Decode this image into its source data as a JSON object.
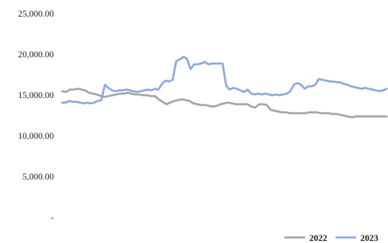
{
  "chart_data": {
    "type": "line",
    "title": "",
    "xlabel": "",
    "ylabel": "",
    "ylim": [
      0,
      25000
    ],
    "y_ticks": [
      0,
      5000,
      10000,
      15000,
      20000,
      25000
    ],
    "y_tick_labels": [
      "-",
      "5,000.00",
      "10,000.00",
      "15,000.00",
      "20,000.00",
      "25,000.00"
    ],
    "grid": false,
    "legend_position": "bottom-right",
    "series": [
      {
        "name": "2022",
        "color": "#a6a6a6",
        "values": [
          15500,
          15400,
          15700,
          15700,
          15800,
          15700,
          15600,
          15300,
          15200,
          15100,
          14900,
          14800,
          14900,
          15000,
          15100,
          15200,
          15200,
          15300,
          15200,
          15100,
          15100,
          15000,
          15000,
          14900,
          14900,
          14500,
          14200,
          13900,
          14100,
          14300,
          14400,
          14500,
          14400,
          14300,
          14000,
          13900,
          13800,
          13800,
          13700,
          13600,
          13700,
          13900,
          14000,
          14100,
          14000,
          13900,
          13900,
          13900,
          13900,
          13600,
          13500,
          13900,
          13900,
          13800,
          13200,
          13100,
          13000,
          12900,
          12900,
          12800,
          12800,
          12800,
          12800,
          12800,
          12900,
          12900,
          12900,
          12800,
          12800,
          12800,
          12700,
          12700,
          12600,
          12500,
          12400,
          12300,
          12400,
          12400,
          12400,
          12400,
          12400,
          12400,
          12400,
          12400,
          12400
        ]
      },
      {
        "name": "2023",
        "color": "#8eaadb",
        "values": [
          14100,
          14100,
          14300,
          14200,
          14200,
          14100,
          14000,
          14100,
          14000,
          14100,
          14300,
          14400,
          16300,
          15900,
          15600,
          15500,
          15600,
          15600,
          15700,
          15600,
          15500,
          15400,
          15500,
          15600,
          15700,
          15600,
          15800,
          15700,
          16400,
          16800,
          16700,
          16900,
          19200,
          19400,
          19700,
          19500,
          18200,
          18800,
          18800,
          18900,
          19100,
          18800,
          18900,
          18900,
          18900,
          18900,
          16200,
          15700,
          15900,
          15800,
          15600,
          15400,
          15700,
          15200,
          15100,
          15200,
          15100,
          15200,
          15100,
          15000,
          15100,
          15000,
          15100,
          15200,
          15500,
          16300,
          16500,
          16300,
          15800,
          16100,
          16100,
          16300,
          17000,
          16900,
          16800,
          16700,
          16700,
          16600,
          16600,
          16400,
          16300,
          16100,
          16000,
          15900,
          15800,
          15900,
          15800,
          15700,
          15600,
          15500,
          15600,
          15800
        ]
      }
    ]
  }
}
